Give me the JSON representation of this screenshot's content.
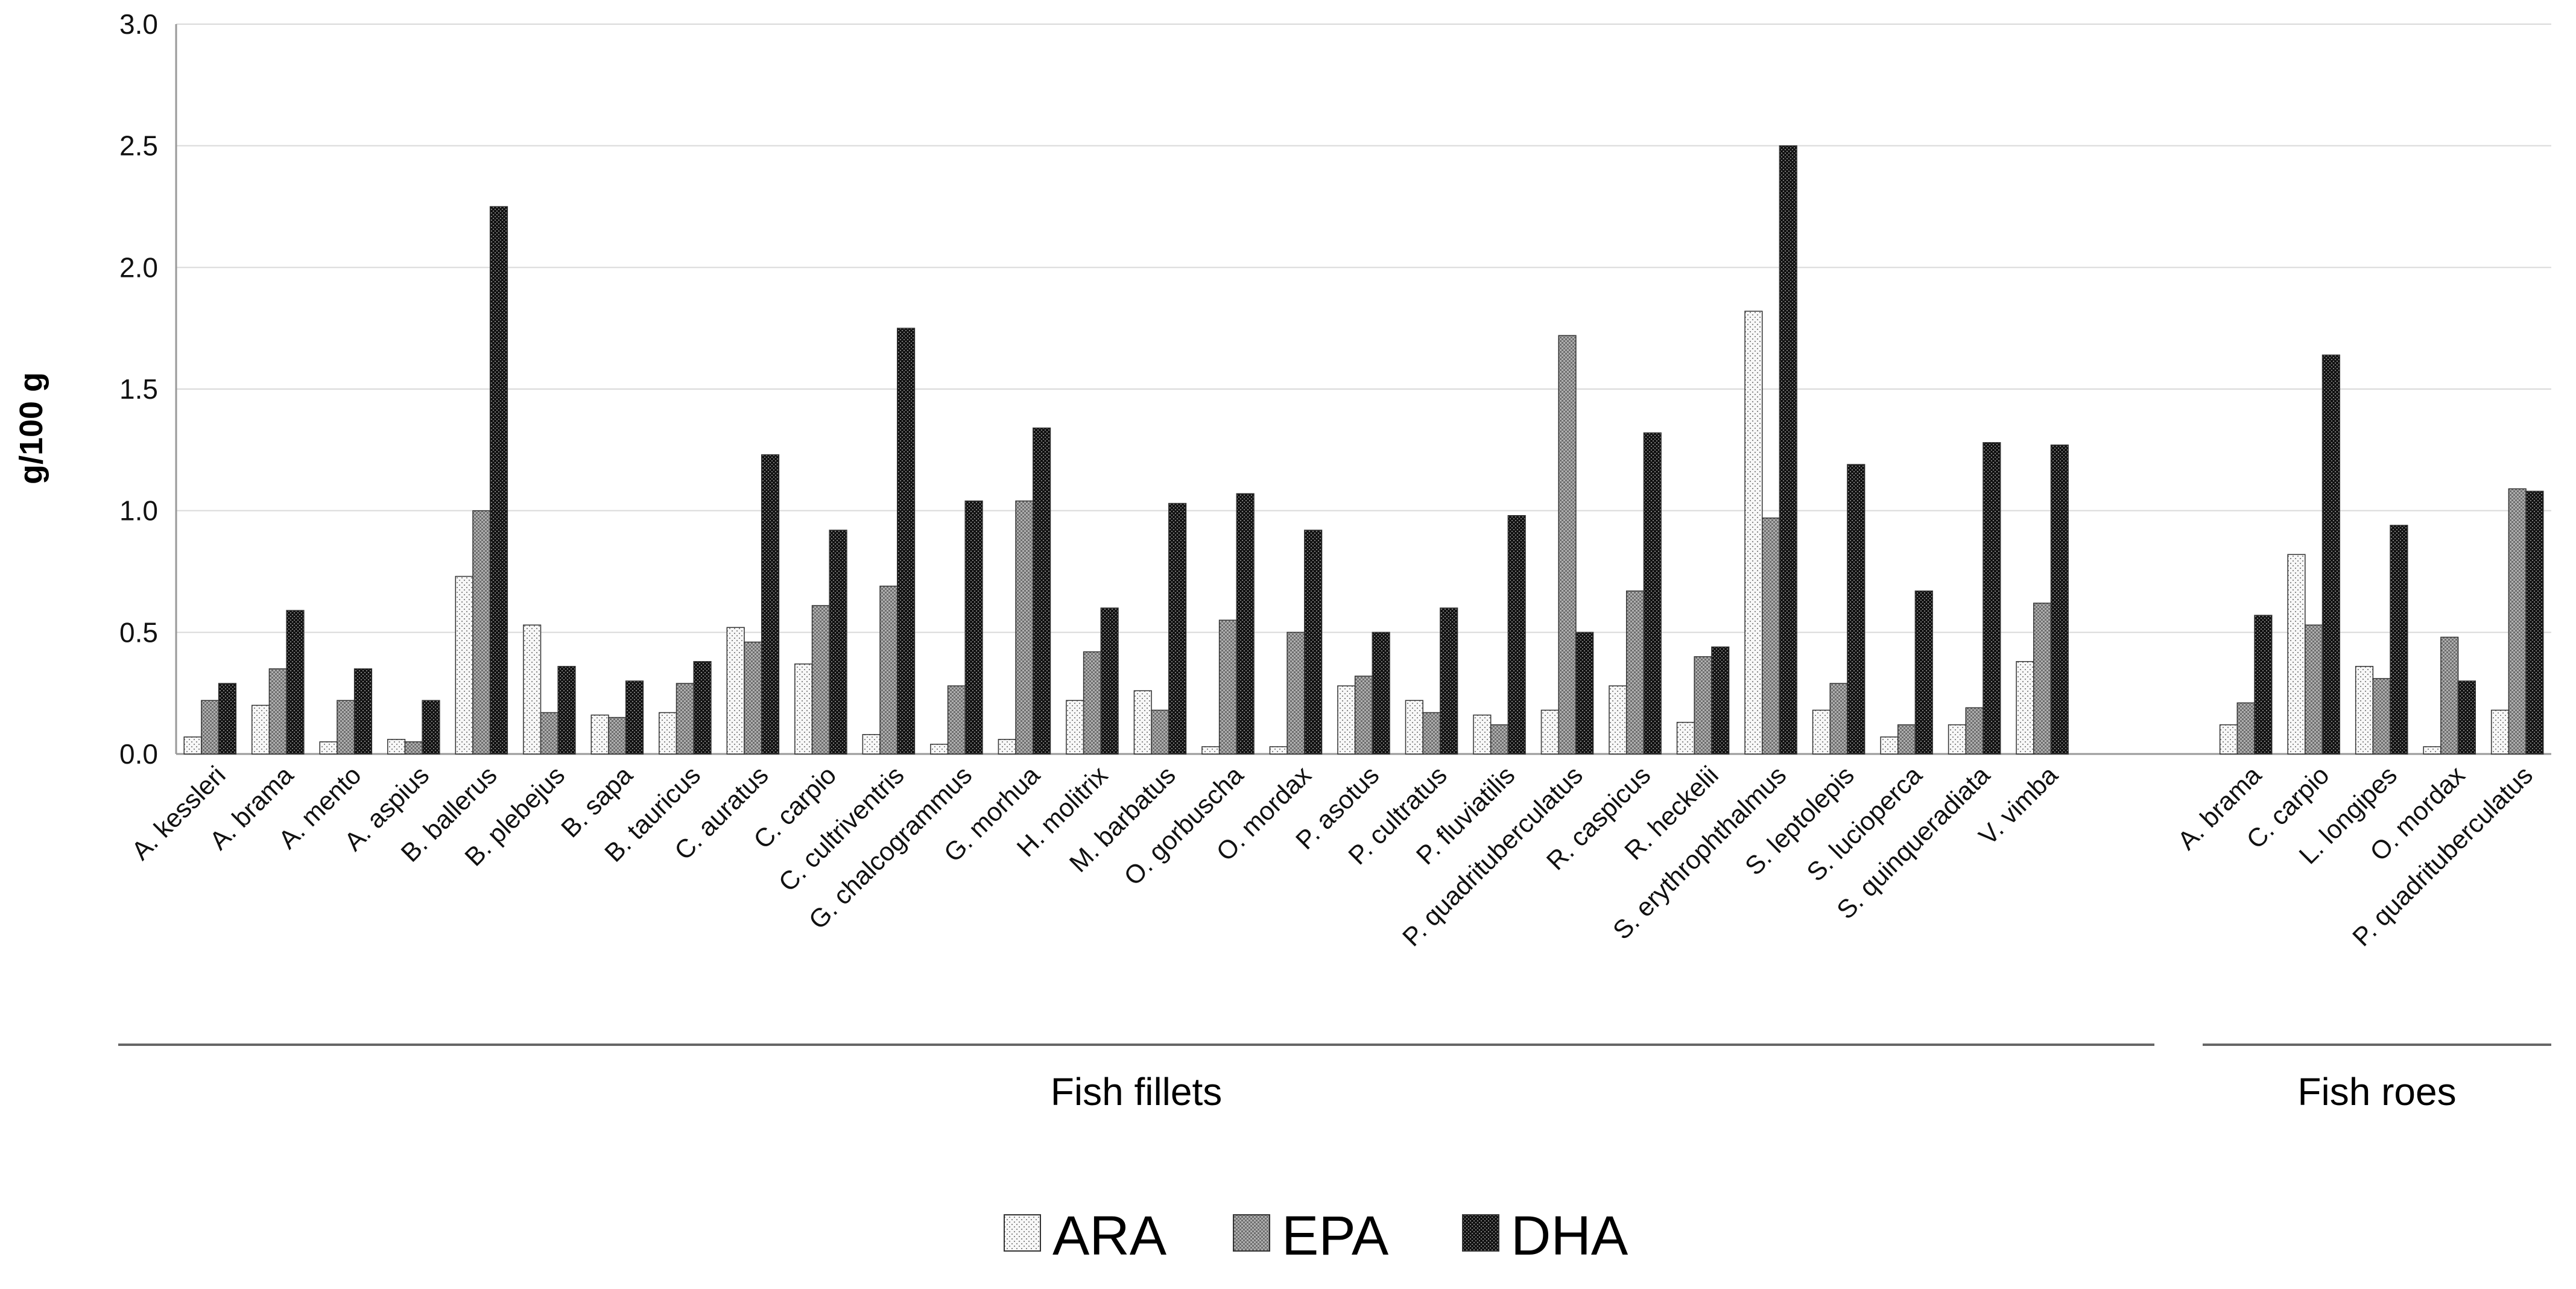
{
  "chart_data": {
    "type": "bar",
    "title": "",
    "xlabel": "",
    "ylabel": "g/100 g",
    "ylim": [
      0,
      3.0
    ],
    "yticks": [
      "0.0",
      "0.5",
      "1.0",
      "1.5",
      "2.0",
      "2.5",
      "3.0"
    ],
    "grid": true,
    "legend_position": "bottom-center",
    "colors": {
      "ARA": "#f2f2f2",
      "EPA": "#a6a6a6",
      "DHA": "#1a1a1a"
    },
    "groups": [
      {
        "label": "Fish fillets",
        "categories": [
          "A. kessleri",
          "A. brama",
          "A. mento",
          "A. aspius",
          "B. ballerus",
          "B. plebejus",
          "B. sapa",
          "B. tauricus",
          "C. auratus",
          "C. carpio",
          "C. cultriventris",
          "G. chalcogrammus",
          "G. morhua",
          "H. molitrix",
          "M. barbatus",
          "O. gorbuscha",
          "O. mordax",
          "P. asotus",
          "P. cultratus",
          "P. fluviatilis",
          "P. quadrituberculatus",
          "R. caspicus",
          "R. heckelii",
          "S. erythrophthalmus",
          "S. leptolepis",
          "S. lucioperca",
          "S. quinqueradiata",
          "V. vimba"
        ],
        "series": [
          {
            "name": "ARA",
            "values": [
              0.07,
              0.2,
              0.05,
              0.06,
              0.73,
              0.53,
              0.16,
              0.17,
              0.52,
              0.37,
              0.08,
              0.04,
              0.06,
              0.22,
              0.26,
              0.03,
              0.03,
              0.28,
              0.22,
              0.16,
              0.18,
              0.28,
              0.13,
              1.82,
              0.18,
              0.07,
              0.12,
              0.38
            ]
          },
          {
            "name": "EPA",
            "values": [
              0.22,
              0.35,
              0.22,
              0.05,
              1.0,
              0.17,
              0.15,
              0.29,
              0.46,
              0.61,
              0.69,
              0.28,
              1.04,
              0.42,
              0.18,
              0.55,
              0.5,
              0.32,
              0.17,
              0.12,
              1.72,
              0.67,
              0.4,
              0.97,
              0.29,
              0.12,
              0.19,
              0.62
            ]
          },
          {
            "name": "DHA",
            "values": [
              0.29,
              0.59,
              0.35,
              0.22,
              2.25,
              0.36,
              0.3,
              0.38,
              1.23,
              0.92,
              1.75,
              1.04,
              1.34,
              0.6,
              1.03,
              1.07,
              0.92,
              0.5,
              0.6,
              0.98,
              0.5,
              1.32,
              0.44,
              2.5,
              1.19,
              0.67,
              1.28,
              1.27
            ]
          }
        ]
      },
      {
        "label": "Fish roes",
        "categories": [
          "A. brama",
          "C. carpio",
          "L. longipes",
          "O. mordax",
          "P. quadrituberculatus"
        ],
        "series": [
          {
            "name": "ARA",
            "values": [
              0.12,
              0.82,
              0.36,
              0.03,
              0.18
            ]
          },
          {
            "name": "EPA",
            "values": [
              0.21,
              0.53,
              0.31,
              0.48,
              1.09
            ]
          },
          {
            "name": "DHA",
            "values": [
              0.57,
              1.64,
              0.94,
              0.3,
              1.08
            ]
          }
        ]
      }
    ],
    "legend": [
      "ARA",
      "EPA",
      "DHA"
    ]
  }
}
